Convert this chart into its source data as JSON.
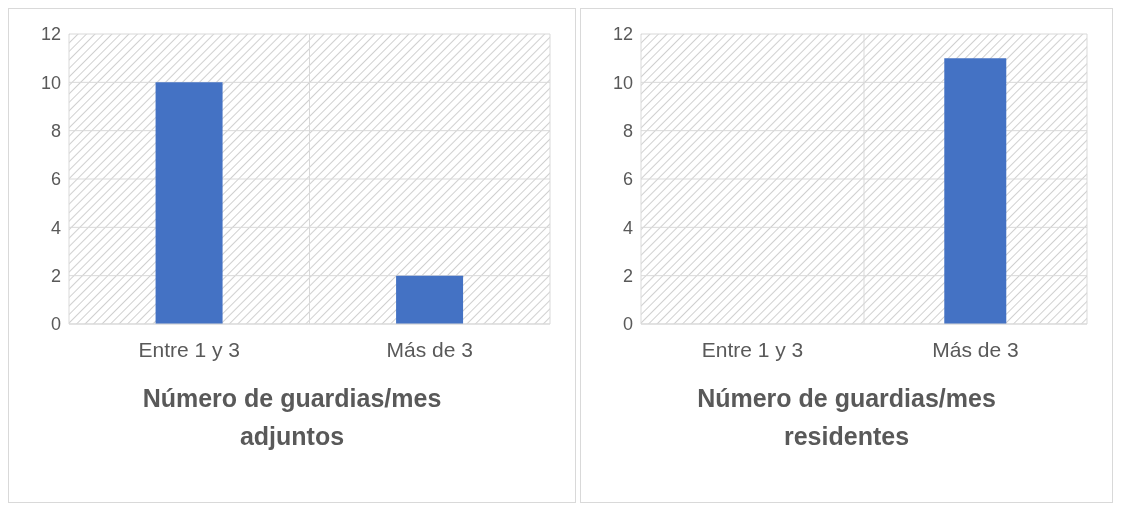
{
  "chart_data": [
    {
      "type": "bar",
      "title": "Número de guardias/mes adjuntos",
      "categories": [
        "Entre 1 y 3",
        "Más de 3"
      ],
      "values": [
        10,
        2
      ],
      "color": "#4472c4",
      "ylim": [
        0,
        12
      ],
      "yticks": [
        0,
        2,
        4,
        6,
        8,
        10,
        12
      ],
      "grid": true
    },
    {
      "type": "bar",
      "title": "Número de guardias/mes residentes",
      "categories": [
        "Entre 1 y 3",
        "Más de 3"
      ],
      "values": [
        0,
        11
      ],
      "color": "#4472c4",
      "ylim": [
        0,
        12
      ],
      "yticks": [
        0,
        2,
        4,
        6,
        8,
        10,
        12
      ],
      "grid": true
    }
  ]
}
